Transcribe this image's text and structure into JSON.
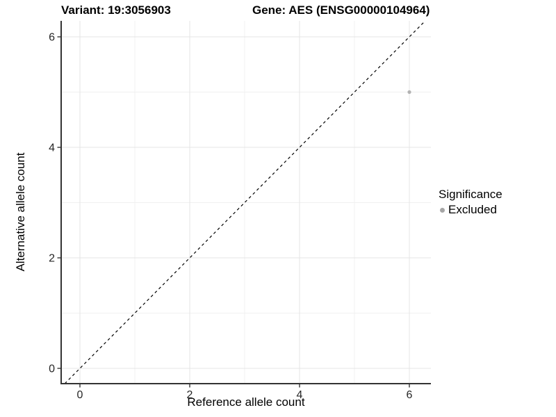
{
  "header": {
    "variant_title": "Variant: 19:3056903",
    "gene_title": "Gene: AES (ENSG00000104964)"
  },
  "chart_data": {
    "type": "scatter",
    "title_left": "Variant: 19:3056903",
    "title_right": "Gene: AES (ENSG00000104964)",
    "xlabel": "Reference allele count",
    "ylabel": "Alternative allele count",
    "xlim": [
      -0.35,
      6.35
    ],
    "ylim": [
      -0.3,
      6.3
    ],
    "x_ticks": [
      0,
      2,
      4,
      6
    ],
    "y_ticks": [
      0,
      2,
      4,
      6
    ],
    "x_minor_ticks": [
      1,
      3,
      5
    ],
    "y_minor_ticks": [
      1,
      3,
      5
    ],
    "grid": true,
    "diagonal_line": {
      "type": "identity y=x",
      "style": "dashed",
      "color": "#000000"
    },
    "series": [
      {
        "name": "Excluded",
        "color": "#b3b3b3",
        "points": [
          {
            "x": 6,
            "y": 5
          }
        ]
      }
    ],
    "legend": {
      "title": "Significance",
      "position": "right",
      "entries": [
        {
          "label": "Excluded",
          "color": "#a6a6a6"
        }
      ]
    },
    "colors": {
      "background": "#ffffff",
      "grid_major": "#e4e4e4",
      "grid_minor": "#f0f0f0",
      "axis_line": "#333333",
      "tick_label": "#262626",
      "point": "#b3b3b3"
    }
  }
}
